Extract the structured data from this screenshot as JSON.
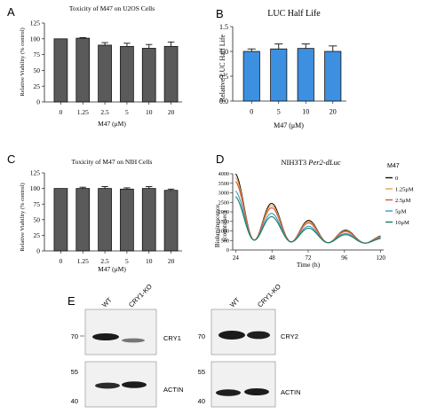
{
  "chart_data": [
    {
      "panel": "A",
      "type": "bar",
      "title": "Toxicity of M47 on U2OS Cells",
      "xlabel": "M47 (μM)",
      "ylabel": "Relative Viability (% control)",
      "categories": [
        "0",
        "1.25",
        "2.5",
        "5",
        "10",
        "20"
      ],
      "values": [
        100,
        101,
        90,
        88,
        85,
        88
      ],
      "errors": [
        0,
        1,
        4,
        5,
        6,
        7
      ],
      "ylim": [
        0,
        125
      ],
      "yticks": [
        "0",
        "25",
        "50",
        "75",
        "100",
        "125"
      ],
      "color": "#5a5a5a"
    },
    {
      "panel": "B",
      "type": "bar",
      "title": "LUC Half Life",
      "xlabel": "M47 (μM)",
      "ylabel": "Relative LUC Half Life",
      "categories": [
        "0",
        "5",
        "10",
        "20"
      ],
      "values": [
        1.0,
        1.05,
        1.06,
        1.0
      ],
      "errors": [
        0.05,
        0.1,
        0.09,
        0.11
      ],
      "ylim": [
        0,
        1.5
      ],
      "yticks": [
        "0.0",
        "0.5",
        "1.0",
        "1.5"
      ],
      "color": "#3d8fe0"
    },
    {
      "panel": "C",
      "type": "bar",
      "title": "Toxicity of M47 on NIH Cells",
      "xlabel": "M47 (μM)",
      "ylabel": "Relative Viability (% control)",
      "categories": [
        "0",
        "1.25",
        "2.5",
        "5",
        "10",
        "20"
      ],
      "values": [
        100,
        100,
        100,
        99,
        100,
        97
      ],
      "errors": [
        0,
        2,
        3,
        2,
        3,
        2
      ],
      "ylim": [
        0,
        125
      ],
      "yticks": [
        "0",
        "25",
        "50",
        "75",
        "100",
        "125"
      ],
      "color": "#5a5a5a"
    },
    {
      "panel": "D",
      "type": "line",
      "title_prefix": "NIH3T3 ",
      "title_italic": "Per2-dLuc",
      "xlabel": "Time (h)",
      "ylabel": "Bioluminescence",
      "ylabel2": "(counts/sec)",
      "xlim": [
        22,
        122
      ],
      "xticks": [
        "24",
        "48",
        "72",
        "96",
        "120"
      ],
      "ylim": [
        0,
        4000
      ],
      "yticks": [
        "0",
        "500",
        "1000",
        "1500",
        "2000",
        "2500",
        "3000",
        "3500",
        "4000"
      ],
      "legend_title": "M47",
      "series": [
        {
          "name": "0",
          "color": "#111111",
          "base": 3400
        },
        {
          "name": "1.25μM",
          "color": "#f0a040",
          "base": 3200
        },
        {
          "name": "2.5μM",
          "color": "#d9553a",
          "base": 3000
        },
        {
          "name": "5μM",
          "color": "#2aa3c9",
          "base": 2500
        },
        {
          "name": "10μM",
          "color": "#1e7a5e",
          "base": 2200
        }
      ]
    }
  ],
  "panel_e": {
    "label": "E",
    "left": {
      "lanes": [
        "WT",
        "CRY1-KO"
      ],
      "top_band_label": "CRY1",
      "bottom_band_label": "ACTIN",
      "top_marker": "70",
      "bottom_markers": [
        "55",
        "40"
      ]
    },
    "right": {
      "lanes": [
        "WT",
        "CRY1-KO"
      ],
      "top_band_label": "CRY2",
      "bottom_band_label": "ACTIN",
      "top_marker": "70",
      "bottom_markers": [
        "55",
        "40"
      ]
    }
  },
  "panel_labels": [
    "A",
    "B",
    "C",
    "D"
  ]
}
